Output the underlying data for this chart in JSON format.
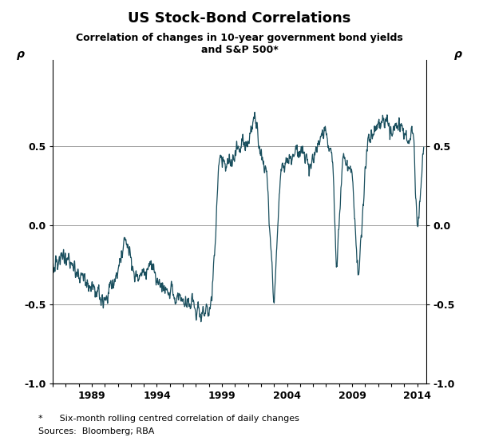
{
  "title": "US Stock-Bond Correlations",
  "subtitle": "Correlation of changes in 10-year government bond yields\nand S&P 500*",
  "footnote1": "*      Six-month rolling centred correlation of daily changes",
  "footnote2": "Sources:  Bloomberg; RBA",
  "ylabel_left": "ρ",
  "ylabel_right": "ρ",
  "ylim": [
    -1.0,
    1.05
  ],
  "yticks": [
    -1.0,
    -0.5,
    0.0,
    0.5
  ],
  "ytick_labels": [
    "-1.0",
    "-0.5",
    "0.0",
    "0.5"
  ],
  "xtick_years": [
    1989,
    1994,
    1999,
    2004,
    2009,
    2014
  ],
  "line_color": "#1a4f5e",
  "line_width": 0.9,
  "bg_color": "#ffffff",
  "grid_color": "#999999",
  "xlim_start": 1986.0,
  "xlim_end": 2014.7
}
